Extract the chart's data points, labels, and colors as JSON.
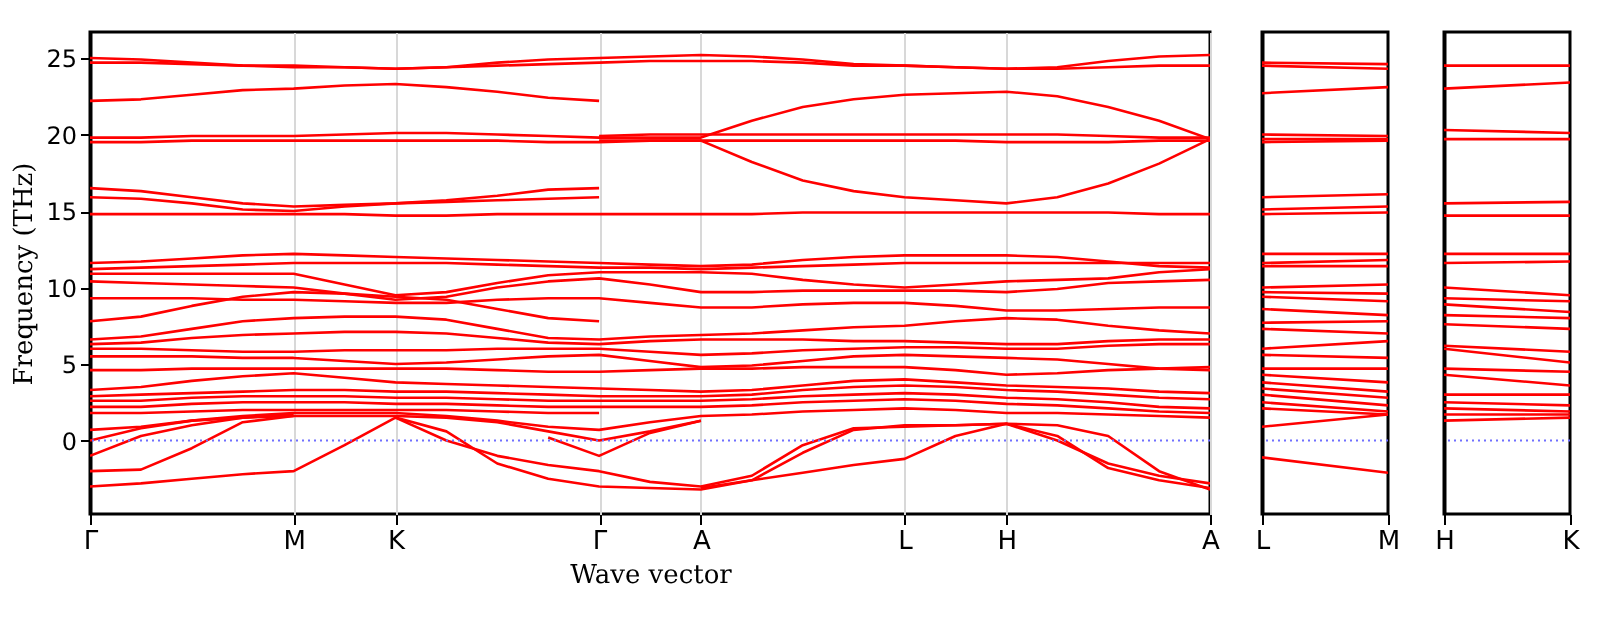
{
  "chart_data": [
    {
      "type": "line",
      "xlabel": "Wave vector",
      "ylabel": "Frequency (THz)",
      "categories": [
        "Γ",
        null,
        null,
        null,
        "M",
        null,
        "K",
        null,
        null,
        null,
        "Γ",
        null,
        "A",
        null,
        null,
        null,
        "L",
        null,
        "H",
        null,
        null,
        null,
        "A"
      ],
      "ylim": [
        -4.8,
        26.7
      ],
      "yticks": [
        0,
        5,
        10,
        15,
        20,
        25
      ],
      "grid": "x",
      "ref_lines": [
        {
          "axis": "y",
          "value": 0,
          "color": "#6f6fff",
          "line_style": "dotted"
        }
      ],
      "series": [
        {
          "color": "#ff0000",
          "values": [
            25.0,
            24.9,
            24.7,
            24.5,
            24.4,
            24.4,
            24.3,
            24.4,
            24.7,
            24.9,
            25.0,
            25.1,
            25.2,
            25.1,
            24.9,
            24.6,
            24.5,
            24.4,
            24.3,
            24.4,
            24.8,
            25.1,
            25.2
          ]
        },
        {
          "color": "#ff0000",
          "values": [
            24.7,
            24.7,
            24.6,
            24.5,
            24.5,
            24.4,
            24.3,
            24.4,
            24.5,
            24.6,
            24.7,
            24.8,
            24.8,
            24.8,
            24.7,
            24.5,
            24.5,
            24.4,
            24.3,
            24.3,
            24.4,
            24.5,
            24.5
          ]
        },
        {
          "color": "#ff0000",
          "values": [
            22.2,
            22.3,
            22.6,
            22.9,
            23.0,
            23.2,
            23.3,
            23.1,
            22.8,
            22.4,
            22.2,
            null,
            null,
            null,
            null,
            null,
            null,
            null,
            null,
            null,
            null,
            null,
            null
          ]
        },
        {
          "color": "#ff0000",
          "values": [
            19.8,
            19.8,
            19.9,
            19.9,
            19.9,
            20.0,
            20.1,
            20.1,
            20.0,
            19.9,
            19.8,
            19.8,
            19.8,
            20.9,
            21.8,
            22.3,
            22.6,
            22.7,
            22.8,
            22.5,
            21.8,
            20.9,
            19.7
          ]
        },
        {
          "color": "#ff0000",
          "values": [
            19.5,
            19.5,
            19.6,
            19.6,
            19.6,
            19.6,
            19.6,
            19.6,
            19.6,
            19.5,
            19.5,
            19.6,
            19.6,
            18.2,
            17.0,
            16.3,
            15.9,
            15.7,
            15.5,
            15.9,
            16.8,
            18.1,
            19.7
          ]
        },
        {
          "color": "#ff0000",
          "values": [
            16.5,
            16.3,
            15.9,
            15.5,
            15.3,
            15.4,
            15.5,
            15.7,
            16.0,
            16.4,
            16.5,
            null,
            null,
            null,
            null,
            null,
            null,
            null,
            null,
            null,
            null,
            null,
            null
          ]
        },
        {
          "color": "#ff0000",
          "values": [
            15.9,
            15.8,
            15.5,
            15.1,
            15.0,
            15.3,
            15.5,
            15.6,
            15.7,
            15.8,
            15.9,
            null,
            null,
            null,
            null,
            null,
            null,
            null,
            null,
            null,
            null,
            null,
            null
          ]
        },
        {
          "color": "#ff0000",
          "values": [
            null,
            null,
            null,
            null,
            null,
            null,
            null,
            null,
            null,
            null,
            19.9,
            20.0,
            20.0,
            20.0,
            20.0,
            20.0,
            20.0,
            20.0,
            20.0,
            20.0,
            19.9,
            19.8,
            19.8
          ]
        },
        {
          "color": "#ff0000",
          "values": [
            null,
            null,
            null,
            null,
            null,
            null,
            null,
            null,
            null,
            null,
            19.6,
            19.6,
            19.6,
            19.6,
            19.6,
            19.6,
            19.6,
            19.6,
            19.5,
            19.5,
            19.5,
            19.6,
            19.6
          ]
        },
        {
          "color": "#ff0000",
          "values": [
            14.8,
            14.8,
            14.8,
            14.8,
            14.8,
            14.8,
            14.7,
            14.7,
            14.8,
            14.8,
            14.8,
            14.8,
            14.8,
            14.8,
            14.9,
            14.9,
            14.9,
            14.9,
            14.9,
            14.9,
            14.9,
            14.8,
            14.8
          ]
        },
        {
          "color": "#ff0000",
          "values": [
            11.6,
            11.7,
            11.9,
            12.1,
            12.2,
            12.1,
            12.0,
            11.9,
            11.8,
            11.7,
            11.6,
            11.5,
            11.4,
            11.5,
            11.8,
            12.0,
            12.1,
            12.1,
            12.1,
            12.0,
            11.7,
            11.4,
            11.3
          ]
        },
        {
          "color": "#ff0000",
          "values": [
            11.2,
            11.3,
            11.4,
            11.5,
            11.6,
            11.6,
            11.6,
            11.6,
            11.5,
            11.4,
            11.3,
            11.3,
            11.2,
            11.3,
            11.4,
            11.5,
            11.6,
            11.6,
            11.6,
            11.6,
            11.6,
            11.6,
            11.6
          ]
        },
        {
          "color": "#ff0000",
          "values": [
            10.9,
            10.9,
            10.9,
            10.9,
            10.9,
            10.2,
            9.5,
            9.7,
            10.3,
            10.8,
            11.0,
            11.0,
            11.0,
            10.9,
            10.5,
            10.2,
            10.0,
            10.2,
            10.4,
            10.5,
            10.6,
            11.0,
            11.2
          ]
        },
        {
          "color": "#ff0000",
          "values": [
            10.4,
            10.3,
            10.2,
            10.1,
            10.0,
            9.6,
            9.2,
            9.4,
            10.0,
            10.4,
            10.6,
            10.2,
            9.7,
            9.7,
            9.8,
            9.8,
            9.8,
            9.8,
            9.7,
            9.9,
            10.3,
            10.4,
            10.5
          ]
        },
        {
          "color": "#ff0000",
          "values": [
            9.3,
            9.3,
            9.3,
            9.2,
            9.2,
            9.1,
            9.0,
            9.0,
            9.2,
            9.3,
            9.3,
            9.0,
            8.7,
            8.7,
            8.9,
            9.0,
            9.0,
            8.8,
            8.5,
            8.5,
            8.6,
            8.7,
            8.7
          ]
        },
        {
          "color": "#ff0000",
          "values": [
            7.8,
            8.1,
            8.8,
            9.4,
            9.7,
            9.6,
            9.4,
            9.2,
            8.6,
            8.0,
            7.8,
            null,
            null,
            null,
            null,
            null,
            null,
            null,
            null,
            null,
            null,
            null,
            null
          ]
        },
        {
          "color": "#ff0000",
          "values": [
            6.6,
            6.8,
            7.3,
            7.8,
            8.0,
            8.1,
            8.1,
            7.9,
            7.3,
            6.7,
            6.6,
            6.8,
            6.9,
            7.0,
            7.2,
            7.4,
            7.5,
            7.8,
            8.0,
            7.9,
            7.5,
            7.2,
            7.0
          ]
        },
        {
          "color": "#ff0000",
          "values": [
            6.3,
            6.4,
            6.7,
            6.9,
            7.0,
            7.1,
            7.1,
            7.0,
            6.7,
            6.4,
            6.3,
            6.5,
            6.6,
            6.6,
            6.6,
            6.5,
            6.5,
            6.4,
            6.3,
            6.3,
            6.5,
            6.6,
            6.6
          ]
        },
        {
          "color": "#ff0000",
          "values": [
            6.0,
            6.0,
            5.9,
            5.8,
            5.8,
            5.9,
            5.9,
            5.9,
            6.0,
            6.0,
            6.0,
            5.8,
            5.6,
            5.7,
            5.9,
            6.0,
            6.1,
            6.1,
            6.0,
            6.0,
            6.2,
            6.3,
            6.3
          ]
        },
        {
          "color": "#ff0000",
          "values": [
            5.5,
            5.5,
            5.5,
            5.4,
            5.4,
            5.2,
            5.0,
            5.1,
            5.3,
            5.5,
            5.6,
            5.2,
            4.8,
            4.9,
            5.2,
            5.5,
            5.6,
            5.5,
            5.4,
            5.3,
            5.0,
            4.7,
            4.6
          ]
        },
        {
          "color": "#ff0000",
          "values": [
            4.6,
            4.6,
            4.7,
            4.7,
            4.7,
            4.7,
            4.7,
            4.7,
            4.6,
            4.5,
            4.5,
            4.6,
            4.7,
            4.7,
            4.8,
            4.8,
            4.8,
            4.6,
            4.3,
            4.4,
            4.6,
            4.7,
            4.8
          ]
        },
        {
          "color": "#ff0000",
          "values": [
            3.3,
            3.5,
            3.9,
            4.2,
            4.4,
            4.1,
            3.8,
            3.7,
            3.6,
            3.5,
            3.4,
            3.3,
            3.2,
            3.3,
            3.6,
            3.9,
            4.0,
            3.8,
            3.6,
            3.5,
            3.4,
            3.2,
            3.1
          ]
        },
        {
          "color": "#ff0000",
          "values": [
            2.9,
            3.0,
            3.1,
            3.2,
            3.3,
            3.3,
            3.2,
            3.2,
            3.1,
            3.0,
            2.9,
            2.9,
            2.9,
            3.0,
            3.3,
            3.5,
            3.6,
            3.5,
            3.3,
            3.2,
            3.0,
            2.8,
            2.7
          ]
        },
        {
          "color": "#ff0000",
          "values": [
            2.6,
            2.6,
            2.8,
            2.9,
            2.9,
            2.9,
            2.8,
            2.8,
            2.7,
            2.6,
            2.6,
            2.6,
            2.6,
            2.7,
            2.9,
            3.0,
            3.1,
            3.0,
            2.8,
            2.7,
            2.5,
            2.2,
            2.1
          ]
        },
        {
          "color": "#ff0000",
          "values": [
            2.2,
            2.2,
            2.4,
            2.5,
            2.5,
            2.5,
            2.4,
            2.4,
            2.3,
            2.2,
            2.2,
            2.2,
            2.2,
            2.3,
            2.5,
            2.6,
            2.7,
            2.6,
            2.4,
            2.3,
            2.1,
            1.9,
            1.8
          ]
        },
        {
          "color": "#ff0000",
          "values": [
            1.8,
            1.8,
            1.9,
            2.0,
            2.0,
            2.0,
            2.0,
            2.0,
            1.9,
            1.8,
            1.8,
            null,
            null,
            null,
            null,
            null,
            null,
            null,
            null,
            null,
            null,
            null,
            null
          ]
        },
        {
          "color": "#ff0000",
          "values": [
            0.7,
            0.9,
            1.3,
            1.6,
            1.8,
            1.8,
            1.8,
            1.6,
            1.3,
            0.9,
            0.7,
            1.2,
            1.6,
            1.7,
            1.9,
            2.0,
            2.1,
            2.0,
            1.8,
            1.8,
            1.7,
            1.6,
            1.5
          ]
        },
        {
          "color": "#ff0000",
          "values": [
            0,
            0.8,
            1.3,
            1.5,
            1.6,
            1.6,
            1.6,
            1.5,
            1.2,
            0.6,
            0,
            0.6,
            1.3,
            null,
            null,
            null,
            null,
            null,
            null,
            null,
            null,
            null,
            null
          ]
        },
        {
          "color": "#ff0000",
          "values": [
            -3.0,
            -2.8,
            -2.5,
            -2.2,
            -2.0,
            -0.3,
            1.5,
            0.0,
            -1.0,
            -1.6,
            -2.0,
            -2.7,
            -3.0,
            -2.3,
            -0.3,
            0.8,
            0.9,
            1.0,
            1.1,
            0.0,
            -1.5,
            -2.3,
            -2.8
          ]
        },
        {
          "color": "#ff0000",
          "values": [
            -2.0,
            -1.9,
            -0.5,
            1.2,
            1.6,
            null,
            null,
            null,
            null,
            null,
            null,
            null,
            null,
            null,
            null,
            null,
            null,
            null,
            null,
            null,
            null,
            null,
            null
          ]
        },
        {
          "color": "#ff0000",
          "values": [
            null,
            null,
            null,
            null,
            null,
            null,
            1.5,
            0.6,
            -1.5,
            -2.5,
            -3.0,
            -3.1,
            -3.2,
            -2.6,
            -0.8,
            0.7,
            1.0,
            1.0,
            1.1,
            0.3,
            -1.8,
            -2.6,
            -3.1
          ]
        },
        {
          "color": "#ff0000",
          "values": [
            -1.0,
            0.3,
            1.0,
            1.5,
            1.7,
            null,
            null,
            null,
            null,
            null,
            null,
            null,
            null,
            null,
            null,
            null,
            null,
            null,
            null,
            null,
            null,
            null,
            null
          ]
        },
        {
          "color": "#ff0000",
          "values": [
            null,
            null,
            null,
            null,
            null,
            null,
            null,
            null,
            null,
            0.2,
            -1.0,
            0.5,
            1.3,
            null,
            null,
            null,
            null,
            null,
            null,
            null,
            null,
            null,
            null
          ]
        },
        {
          "color": "#ff0000",
          "values": [
            null,
            null,
            null,
            null,
            null,
            null,
            null,
            null,
            null,
            null,
            null,
            null,
            -3.1,
            -2.6,
            -2.1,
            -1.6,
            -1.2,
            0.3,
            1.1,
            1.0,
            0.3,
            -2.0,
            -3.2
          ]
        }
      ]
    },
    {
      "type": "line",
      "categories": [
        "L",
        "M"
      ],
      "ylim": [
        -4.8,
        26.7
      ],
      "tick_labels": "x",
      "ref_lines": [
        {
          "axis": "y",
          "value": 0,
          "color": "#6f6fff",
          "line_style": "dotted"
        }
      ],
      "series": [
        {
          "color": "#ff0000",
          "values": [
            24.7,
            24.6
          ]
        },
        {
          "color": "#ff0000",
          "values": [
            24.5,
            24.3
          ]
        },
        {
          "color": "#ff0000",
          "values": [
            22.7,
            23.1
          ]
        },
        {
          "color": "#ff0000",
          "values": [
            20.0,
            19.9
          ]
        },
        {
          "color": "#ff0000",
          "values": [
            19.7,
            19.7
          ]
        },
        {
          "color": "#ff0000",
          "values": [
            19.5,
            19.6
          ]
        },
        {
          "color": "#ff0000",
          "values": [
            15.9,
            16.1
          ]
        },
        {
          "color": "#ff0000",
          "values": [
            15.1,
            15.3
          ]
        },
        {
          "color": "#ff0000",
          "values": [
            14.8,
            14.9
          ]
        },
        {
          "color": "#ff0000",
          "values": [
            12.2,
            12.2
          ]
        },
        {
          "color": "#ff0000",
          "values": [
            11.6,
            11.8
          ]
        },
        {
          "color": "#ff0000",
          "values": [
            11.4,
            11.4
          ]
        },
        {
          "color": "#ff0000",
          "values": [
            10.0,
            10.2
          ]
        },
        {
          "color": "#ff0000",
          "values": [
            9.7,
            9.6
          ]
        },
        {
          "color": "#ff0000",
          "values": [
            9.4,
            9.1
          ]
        },
        {
          "color": "#ff0000",
          "values": [
            8.6,
            8.2
          ]
        },
        {
          "color": "#ff0000",
          "values": [
            7.7,
            7.8
          ]
        },
        {
          "color": "#ff0000",
          "values": [
            7.3,
            7.0
          ]
        },
        {
          "color": "#ff0000",
          "values": [
            6.0,
            6.5
          ]
        },
        {
          "color": "#ff0000",
          "values": [
            5.6,
            5.4
          ]
        },
        {
          "color": "#ff0000",
          "values": [
            4.7,
            4.7
          ]
        },
        {
          "color": "#ff0000",
          "values": [
            4.3,
            3.8
          ]
        },
        {
          "color": "#ff0000",
          "values": [
            3.8,
            3.2
          ]
        },
        {
          "color": "#ff0000",
          "values": [
            3.4,
            2.8
          ]
        },
        {
          "color": "#ff0000",
          "values": [
            3.0,
            2.3
          ]
        },
        {
          "color": "#ff0000",
          "values": [
            2.5,
            1.9
          ]
        },
        {
          "color": "#ff0000",
          "values": [
            2.1,
            1.7
          ]
        },
        {
          "color": "#ff0000",
          "values": [
            0.9,
            1.7
          ]
        },
        {
          "color": "#ff0000",
          "values": [
            -1.1,
            -2.1
          ]
        }
      ]
    },
    {
      "type": "line",
      "categories": [
        "H",
        "K"
      ],
      "ylim": [
        -4.8,
        26.7
      ],
      "tick_labels": "x",
      "ref_lines": [
        {
          "axis": "y",
          "value": 0,
          "color": "#6f6fff",
          "line_style": "dotted"
        }
      ],
      "series": [
        {
          "color": "#ff0000",
          "values": [
            24.5,
            24.5
          ]
        },
        {
          "color": "#ff0000",
          "values": [
            23.0,
            23.4
          ]
        },
        {
          "color": "#ff0000",
          "values": [
            20.3,
            20.1
          ]
        },
        {
          "color": "#ff0000",
          "values": [
            19.7,
            19.7
          ]
        },
        {
          "color": "#ff0000",
          "values": [
            15.5,
            15.6
          ]
        },
        {
          "color": "#ff0000",
          "values": [
            14.7,
            14.7
          ]
        },
        {
          "color": "#ff0000",
          "values": [
            12.2,
            12.2
          ]
        },
        {
          "color": "#ff0000",
          "values": [
            11.6,
            11.7
          ]
        },
        {
          "color": "#ff0000",
          "values": [
            10.0,
            9.5
          ]
        },
        {
          "color": "#ff0000",
          "values": [
            9.3,
            9.1
          ]
        },
        {
          "color": "#ff0000",
          "values": [
            8.9,
            8.4
          ]
        },
        {
          "color": "#ff0000",
          "values": [
            8.2,
            8.0
          ]
        },
        {
          "color": "#ff0000",
          "values": [
            7.6,
            7.3
          ]
        },
        {
          "color": "#ff0000",
          "values": [
            6.2,
            5.8
          ]
        },
        {
          "color": "#ff0000",
          "values": [
            6.0,
            5.1
          ]
        },
        {
          "color": "#ff0000",
          "values": [
            4.7,
            4.5
          ]
        },
        {
          "color": "#ff0000",
          "values": [
            4.3,
            3.6
          ]
        },
        {
          "color": "#ff0000",
          "values": [
            3.0,
            3.0
          ]
        },
        {
          "color": "#ff0000",
          "values": [
            2.5,
            2.3
          ]
        },
        {
          "color": "#ff0000",
          "values": [
            2.1,
            1.9
          ]
        },
        {
          "color": "#ff0000",
          "values": [
            1.7,
            1.7
          ]
        },
        {
          "color": "#ff0000",
          "values": [
            1.3,
            1.5
          ]
        }
      ]
    }
  ]
}
